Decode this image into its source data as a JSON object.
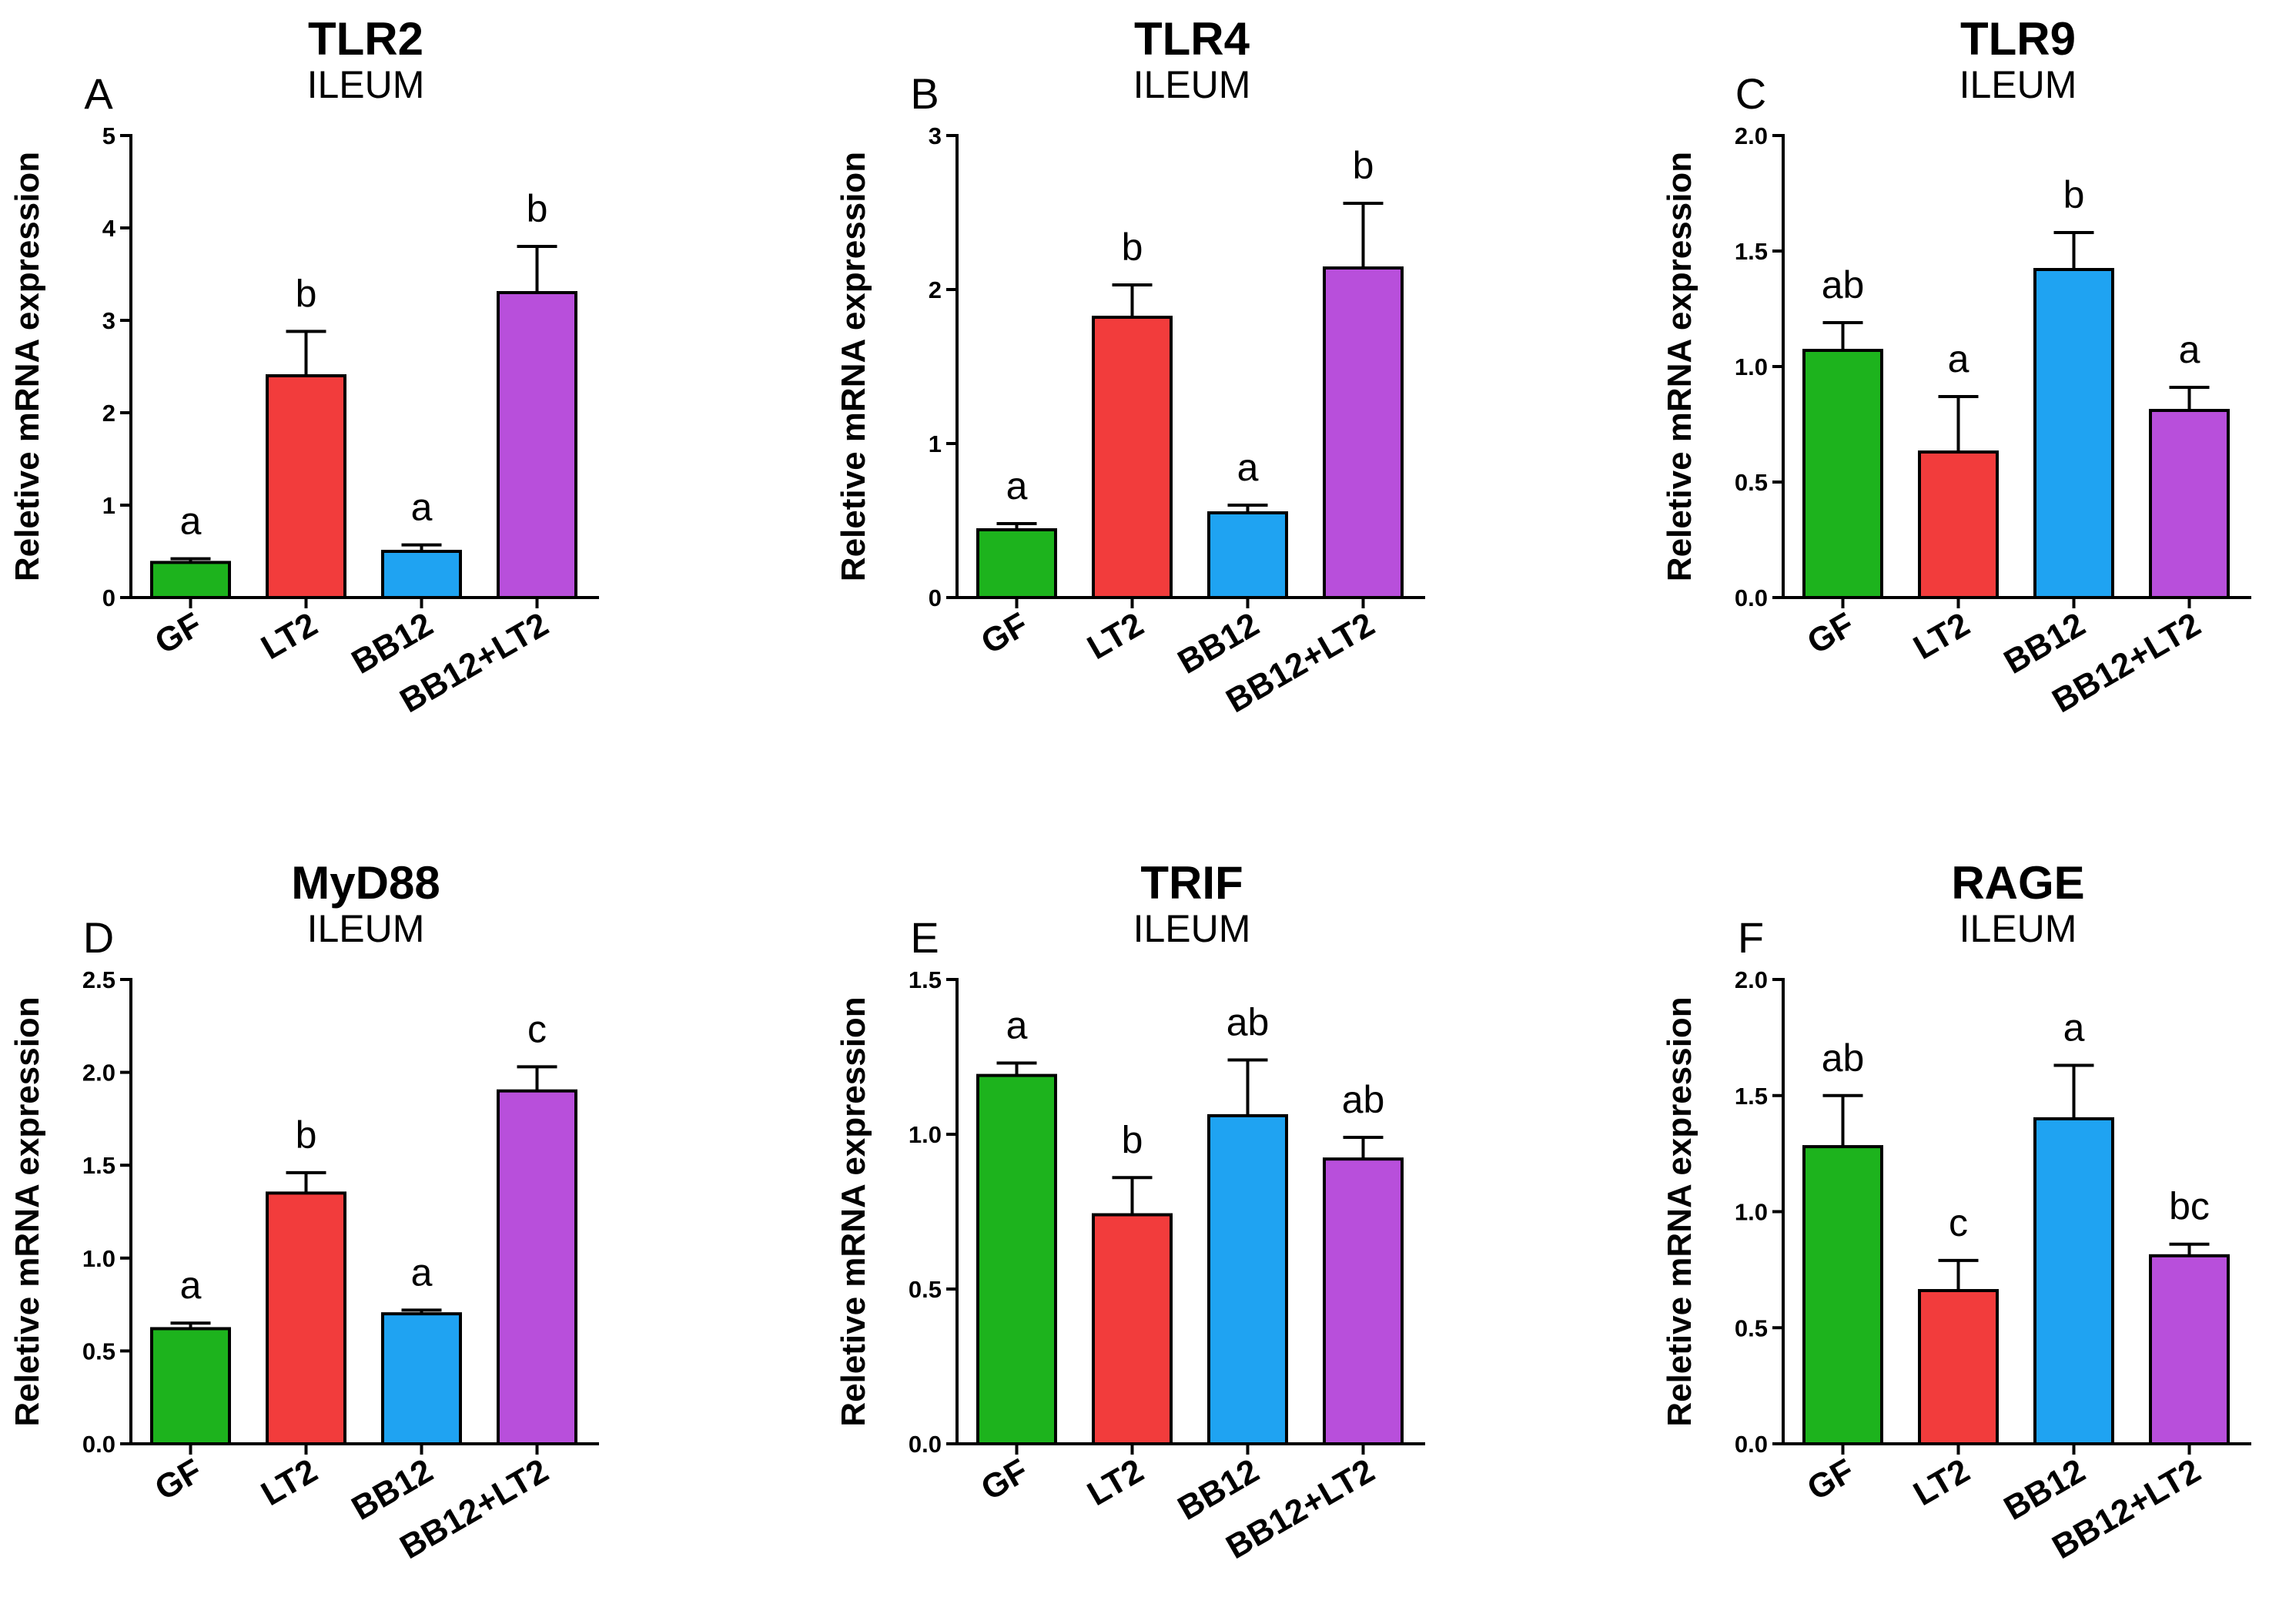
{
  "chart_data": [
    {
      "type": "bar",
      "panel": "A",
      "title": "TLR2",
      "subtitle": "ILEUM",
      "ylabel": "Reletive mRNA expression",
      "ylim": [
        0,
        5
      ],
      "yticks": [
        "0",
        "1",
        "2",
        "3",
        "4",
        "5"
      ],
      "categories": [
        "GF",
        "LT2",
        "BB12",
        "BB12+LT2"
      ],
      "values": [
        0.38,
        2.4,
        0.5,
        3.3
      ],
      "errors": [
        0.04,
        0.48,
        0.07,
        0.5
      ],
      "significance": [
        "a",
        "b",
        "a",
        "b"
      ]
    },
    {
      "type": "bar",
      "panel": "B",
      "title": "TLR4",
      "subtitle": "ILEUM",
      "ylabel": "Reletive mRNA expression",
      "ylim": [
        0,
        3
      ],
      "yticks": [
        "0",
        "1",
        "2",
        "3"
      ],
      "categories": [
        "GF",
        "LT2",
        "BB12",
        "BB12+LT2"
      ],
      "values": [
        0.44,
        1.82,
        0.55,
        2.14
      ],
      "errors": [
        0.04,
        0.21,
        0.05,
        0.42
      ],
      "significance": [
        "a",
        "b",
        "a",
        "b"
      ]
    },
    {
      "type": "bar",
      "panel": "C",
      "title": "TLR9",
      "subtitle": "ILEUM",
      "ylabel": "Reletive mRNA expression",
      "ylim": [
        0,
        2
      ],
      "yticks": [
        "0.0",
        "0.5",
        "1.0",
        "1.5",
        "2.0"
      ],
      "categories": [
        "GF",
        "LT2",
        "BB12",
        "BB12+LT2"
      ],
      "values": [
        1.07,
        0.63,
        1.42,
        0.81
      ],
      "errors": [
        0.12,
        0.24,
        0.16,
        0.1
      ],
      "significance": [
        "ab",
        "a",
        "b",
        "a"
      ]
    },
    {
      "type": "bar",
      "panel": "D",
      "title": "MyD88",
      "subtitle": "ILEUM",
      "ylabel": "Reletive mRNA expression",
      "ylim": [
        0,
        2.5
      ],
      "yticks": [
        "0.0",
        "0.5",
        "1.0",
        "1.5",
        "2.0",
        "2.5"
      ],
      "categories": [
        "GF",
        "LT2",
        "BB12",
        "BB12+LT2"
      ],
      "values": [
        0.62,
        1.35,
        0.7,
        1.9
      ],
      "errors": [
        0.03,
        0.11,
        0.02,
        0.13
      ],
      "significance": [
        "a",
        "b",
        "a",
        "c"
      ]
    },
    {
      "type": "bar",
      "panel": "E",
      "title": "TRIF",
      "subtitle": "ILEUM",
      "ylabel": "Reletive mRNA expression",
      "ylim": [
        0,
        1.5
      ],
      "yticks": [
        "0.0",
        "0.5",
        "1.0",
        "1.5"
      ],
      "categories": [
        "GF",
        "LT2",
        "BB12",
        "BB12+LT2"
      ],
      "values": [
        1.19,
        0.74,
        1.06,
        0.92
      ],
      "errors": [
        0.04,
        0.12,
        0.18,
        0.07
      ],
      "significance": [
        "a",
        "b",
        "ab",
        "ab"
      ]
    },
    {
      "type": "bar",
      "panel": "F",
      "title": "RAGE",
      "subtitle": "ILEUM",
      "ylabel": "Reletive mRNA expression",
      "ylim": [
        0,
        2
      ],
      "yticks": [
        "0.0",
        "0.5",
        "1.0",
        "1.5",
        "2.0"
      ],
      "categories": [
        "GF",
        "LT2",
        "BB12",
        "BB12+LT2"
      ],
      "values": [
        1.28,
        0.66,
        1.4,
        0.81
      ],
      "errors": [
        0.22,
        0.13,
        0.23,
        0.05
      ],
      "significance": [
        "ab",
        "c",
        "a",
        "bc"
      ]
    }
  ],
  "colors": {
    "bars": [
      "#1db31d",
      "#f23c3c",
      "#1fa3f2",
      "#b84fdb"
    ],
    "stroke": "#000000"
  }
}
